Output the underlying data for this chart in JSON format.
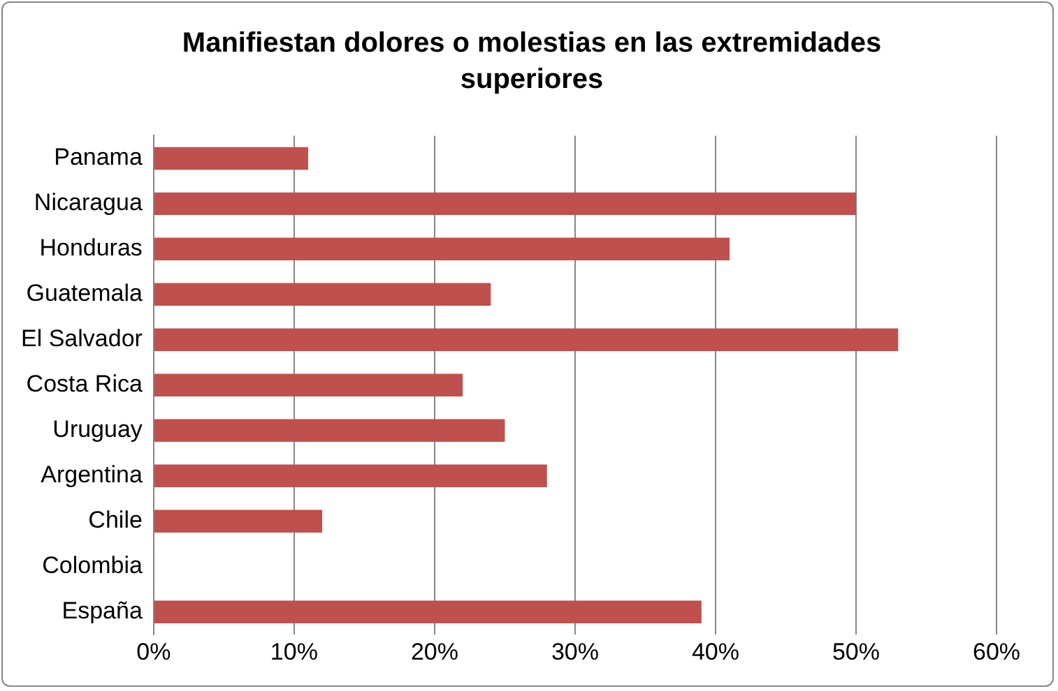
{
  "chart_data": {
    "type": "bar",
    "orientation": "horizontal",
    "title": "Manifiestan dolores o molestias en las extremidades superiores",
    "categories": [
      "Panama",
      "Nicaragua",
      "Honduras",
      "Guatemala",
      "El Salvador",
      "Costa Rica",
      "Uruguay",
      "Argentina",
      "Chile",
      "Colombia",
      "España"
    ],
    "values": [
      11,
      50,
      41,
      24,
      53,
      22,
      25,
      28,
      12,
      null,
      39
    ],
    "color": "#c0504d",
    "xlim": [
      0,
      60
    ],
    "xticks": [
      {
        "value": 0,
        "label": "0%"
      },
      {
        "value": 10,
        "label": "10%"
      },
      {
        "value": 20,
        "label": "20%"
      },
      {
        "value": 30,
        "label": "30%"
      },
      {
        "value": 40,
        "label": "40%"
      },
      {
        "value": 50,
        "label": "50%"
      },
      {
        "value": 60,
        "label": "60%"
      }
    ],
    "grid": "x",
    "legend": false
  }
}
